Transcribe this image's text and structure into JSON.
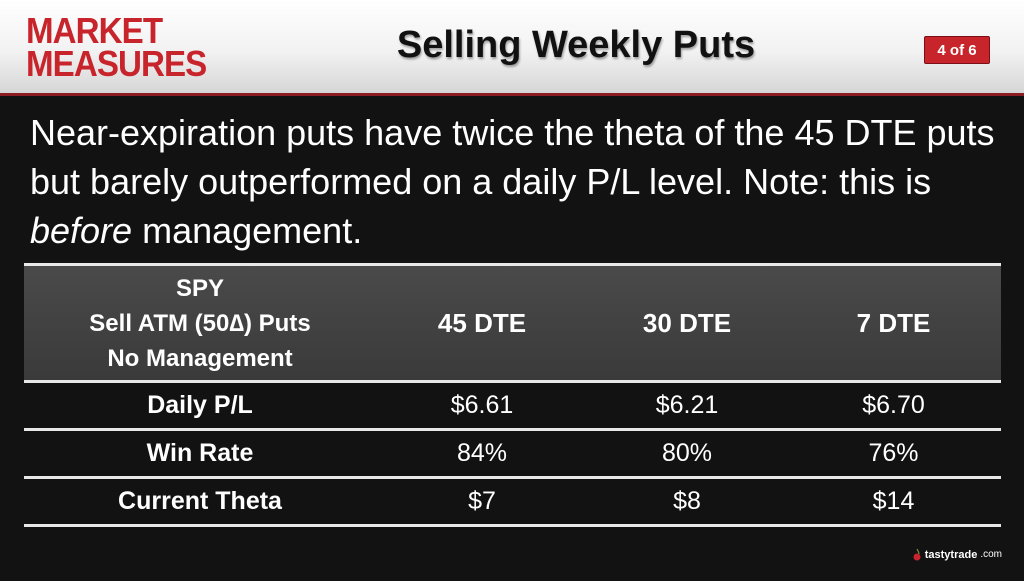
{
  "header": {
    "logo_line1": "MARKET",
    "logo_line2": "MEASURES",
    "title": "Selling Weekly Puts",
    "page_indicator": "4 of 6"
  },
  "body_text": {
    "before_emphasis": "Near-expiration puts have twice the theta of the 45 DTE puts but barely outperformed on a daily P/L level. Note: this is ",
    "emphasis": "before",
    "after_emphasis": " management."
  },
  "table": {
    "header_label_lines": [
      "SPY",
      "Sell ATM (50∆) Puts",
      "No Management"
    ],
    "columns": [
      "45 DTE",
      "30 DTE",
      "7 DTE"
    ],
    "rows": [
      {
        "label": "Daily P/L",
        "values": [
          "$6.61",
          "$6.21",
          "$6.70"
        ]
      },
      {
        "label": "Win Rate",
        "values": [
          "84%",
          "80%",
          "76%"
        ]
      },
      {
        "label": "Current Theta",
        "values": [
          "$7",
          "$8",
          "$14"
        ]
      }
    ]
  },
  "footer": {
    "brand": "tastytrade",
    "brand_suffix": ".com",
    "accent_color": "#c8242c"
  }
}
